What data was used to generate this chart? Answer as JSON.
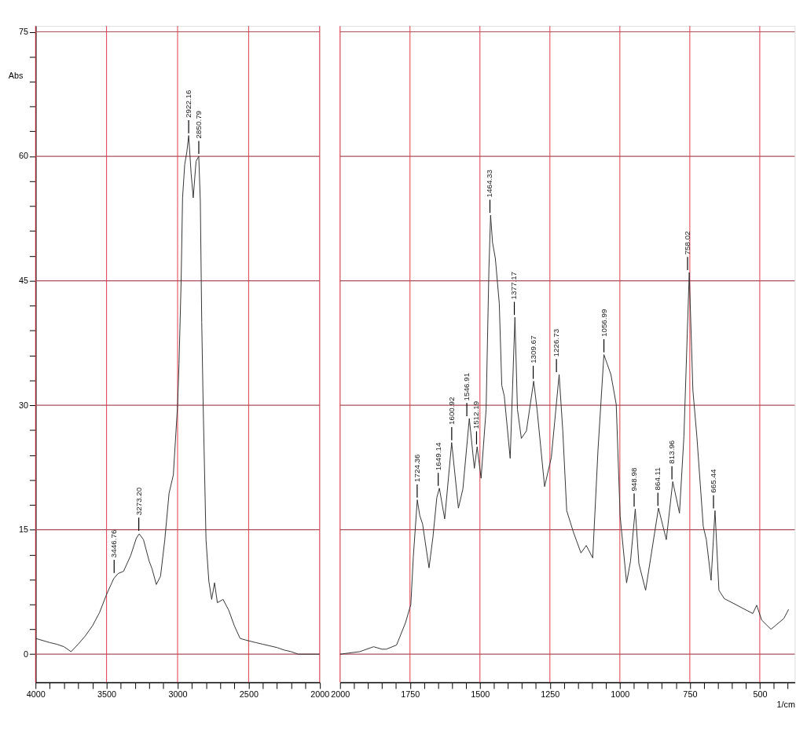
{
  "chart_data": [
    {
      "type": "line",
      "ylabel": "Abs",
      "x": [
        4000,
        3900,
        3850,
        3800,
        3750,
        3700,
        3650,
        3600,
        3550,
        3500,
        3450,
        3420,
        3380,
        3330,
        3290,
        3270,
        3240,
        3200,
        3180,
        3150,
        3120,
        3090,
        3060,
        3030,
        3000,
        2990,
        2975,
        2965,
        2950,
        2935,
        2922,
        2905,
        2890,
        2870,
        2851,
        2840,
        2830,
        2820,
        2800,
        2780,
        2760,
        2740,
        2720,
        2680,
        2640,
        2600,
        2560,
        2520,
        2450,
        2400,
        2300,
        2250,
        2200,
        2150,
        2000
      ],
      "values": [
        1.9,
        1.4,
        1.2,
        0.9,
        0.3,
        1.2,
        2.2,
        3.4,
        5,
        7.2,
        9.1,
        9.7,
        10,
        11.9,
        14,
        14.5,
        13.8,
        11.2,
        10.3,
        8.4,
        9.4,
        13.8,
        19.4,
        21.6,
        30,
        35,
        45,
        55,
        59,
        60.5,
        62.5,
        58,
        55,
        59.4,
        60,
        54.6,
        40,
        30,
        13.8,
        8.8,
        6.6,
        8.6,
        6.2,
        6.6,
        5.3,
        3.4,
        1.9,
        1.7,
        1.4,
        1.2,
        0.8,
        0.5,
        0.3,
        0,
        0
      ],
      "color": "#333333",
      "xlim": [
        4000,
        2000
      ],
      "xticks": [
        4000,
        {
          "value": 3900,
          "label": null
        },
        {
          "value": 3800,
          "label": null
        },
        {
          "value": 3700,
          "label": null
        },
        {
          "value": 3600,
          "label": null
        },
        3500,
        {
          "value": 3400,
          "label": null
        },
        {
          "value": 3300,
          "label": null
        },
        {
          "value": 3200,
          "label": null
        },
        {
          "value": 3100,
          "label": null
        },
        3000,
        {
          "value": 2900,
          "label": null
        },
        {
          "value": 2800,
          "label": null
        },
        {
          "value": 2700,
          "label": null
        },
        {
          "value": 2600,
          "label": null
        },
        2500,
        {
          "value": 2400,
          "label": null
        },
        {
          "value": 2300,
          "label": null
        },
        {
          "value": 2200,
          "label": null
        },
        {
          "value": 2100,
          "label": null
        },
        2000
      ],
      "ylim": [
        -3.4,
        75.7
      ],
      "yticks": [
        0,
        {
          "value": 3,
          "label": null
        },
        {
          "value": 6,
          "label": null
        },
        {
          "value": 9,
          "label": null
        },
        {
          "value": 12,
          "label": null
        },
        15,
        {
          "value": 18,
          "label": null
        },
        {
          "value": 21,
          "label": null
        },
        {
          "value": 24,
          "label": null
        },
        {
          "value": 27,
          "label": null
        },
        30,
        {
          "value": 33,
          "label": null
        },
        {
          "value": 36,
          "label": null
        },
        {
          "value": 39,
          "label": null
        },
        {
          "value": 42,
          "label": null
        },
        45,
        {
          "value": 48,
          "label": null
        },
        {
          "value": 51,
          "label": null
        },
        {
          "value": 54,
          "label": null
        },
        {
          "value": 57,
          "label": null
        },
        60,
        {
          "value": 63,
          "label": null
        },
        {
          "value": 66,
          "label": null
        },
        {
          "value": 69,
          "label": null
        },
        {
          "value": 72,
          "label": null
        },
        75
      ],
      "grid": true,
      "annotations": [
        {
          "text": "3446.76",
          "x": 3446.76,
          "y": 9.5
        },
        {
          "text": "3273.20",
          "x": 3273.2,
          "y": 14.6
        },
        {
          "text": "2922.16",
          "x": 2922.16,
          "y": 62.5
        },
        {
          "text": "2850.79",
          "x": 2850.79,
          "y": 60
        }
      ]
    },
    {
      "type": "line",
      "xlabel": "1/cm",
      "tick_labels": "x",
      "x": [
        2000,
        1930,
        1880,
        1850,
        1835,
        1798,
        1766,
        1747,
        1738,
        1724,
        1715,
        1705,
        1682,
        1668,
        1654,
        1645,
        1626,
        1601,
        1577,
        1561,
        1538,
        1520,
        1510,
        1496,
        1478,
        1468,
        1462,
        1455,
        1445,
        1431,
        1422,
        1413,
        1392,
        1375,
        1366,
        1352,
        1334,
        1308,
        1296,
        1269,
        1245,
        1217,
        1204,
        1190,
        1166,
        1139,
        1120,
        1097,
        1078,
        1057,
        1032,
        1013,
        999,
        976,
        962,
        945,
        932,
        908,
        862,
        834,
        811,
        787,
        771,
        752,
        739,
        725,
        702,
        691,
        674,
        660,
        646,
        627,
        525,
        511,
        493,
        460,
        414,
        397
      ],
      "values": [
        0,
        0.3,
        0.9,
        0.6,
        0.6,
        1.1,
        3.8,
        6,
        11.8,
        18.6,
        16.7,
        15.7,
        10.4,
        14.1,
        18.9,
        20,
        16.3,
        25.5,
        17.6,
        19.9,
        28.4,
        22.4,
        25,
        21.2,
        29.5,
        46.4,
        52.9,
        49.6,
        47.7,
        42.3,
        32.4,
        31.1,
        23.6,
        40.6,
        29.5,
        26,
        26.9,
        32.9,
        29.5,
        20.2,
        23.7,
        33.7,
        26.9,
        17.3,
        14.7,
        12.2,
        13.1,
        11.6,
        24.7,
        36.1,
        33.7,
        30.1,
        16.6,
        8.6,
        11.2,
        17.5,
        10.9,
        7.7,
        17.6,
        13.8,
        20.8,
        17,
        26.3,
        46,
        31.8,
        26.3,
        15.4,
        13.8,
        8.9,
        17.3,
        7.7,
        6.7,
        4.9,
        5.9,
        4.1,
        3,
        4.3,
        5.4
      ],
      "color": "#333333",
      "xlim": [
        2000,
        375
      ],
      "xticks": [
        2000,
        {
          "value": 1950,
          "label": null
        },
        {
          "value": 1900,
          "label": null
        },
        {
          "value": 1850,
          "label": null
        },
        {
          "value": 1800,
          "label": null
        },
        1750,
        {
          "value": 1700,
          "label": null
        },
        {
          "value": 1650,
          "label": null
        },
        {
          "value": 1600,
          "label": null
        },
        {
          "value": 1550,
          "label": null
        },
        1500,
        {
          "value": 1450,
          "label": null
        },
        {
          "value": 1400,
          "label": null
        },
        {
          "value": 1350,
          "label": null
        },
        {
          "value": 1300,
          "label": null
        },
        1250,
        {
          "value": 1200,
          "label": null
        },
        {
          "value": 1150,
          "label": null
        },
        {
          "value": 1100,
          "label": null
        },
        {
          "value": 1050,
          "label": null
        },
        1000,
        {
          "value": 950,
          "label": null
        },
        {
          "value": 900,
          "label": null
        },
        {
          "value": 850,
          "label": null
        },
        {
          "value": 800,
          "label": null
        },
        750,
        {
          "value": 700,
          "label": null
        },
        {
          "value": 650,
          "label": null
        },
        {
          "value": 600,
          "label": null
        },
        {
          "value": 550,
          "label": null
        },
        500,
        {
          "value": 450,
          "label": null
        },
        {
          "value": 400,
          "label": null
        }
      ],
      "ylim": [
        -3.4,
        75.7
      ],
      "yticks": [
        0,
        15,
        30,
        45,
        60,
        75
      ],
      "grid": true,
      "annotations": [
        {
          "text": "1724.36",
          "x": 1724.36,
          "y": 18.6
        },
        {
          "text": "1649.14",
          "x": 1649.14,
          "y": 20
        },
        {
          "text": "1600.92",
          "x": 1600.92,
          "y": 25.5
        },
        {
          "text": "1546.91",
          "x": 1546.91,
          "y": 28.4
        },
        {
          "text": "1512.19",
          "x": 1512.19,
          "y": 25
        },
        {
          "text": "1464.33",
          "x": 1464.33,
          "y": 52.9
        },
        {
          "text": "1377.17",
          "x": 1377.17,
          "y": 40.6
        },
        {
          "text": "1309.67",
          "x": 1309.67,
          "y": 32.9
        },
        {
          "text": "1226.73",
          "x": 1226.73,
          "y": 33.7
        },
        {
          "text": "1056.99",
          "x": 1056.99,
          "y": 36.1
        },
        {
          "text": "948.98",
          "x": 948.98,
          "y": 17.5
        },
        {
          "text": "864.11",
          "x": 864.11,
          "y": 17.6
        },
        {
          "text": "813.96",
          "x": 813.96,
          "y": 20.8
        },
        {
          "text": "758.02",
          "x": 758.02,
          "y": 46
        },
        {
          "text": "665.44",
          "x": 665.44,
          "y": 17.3
        }
      ]
    }
  ]
}
